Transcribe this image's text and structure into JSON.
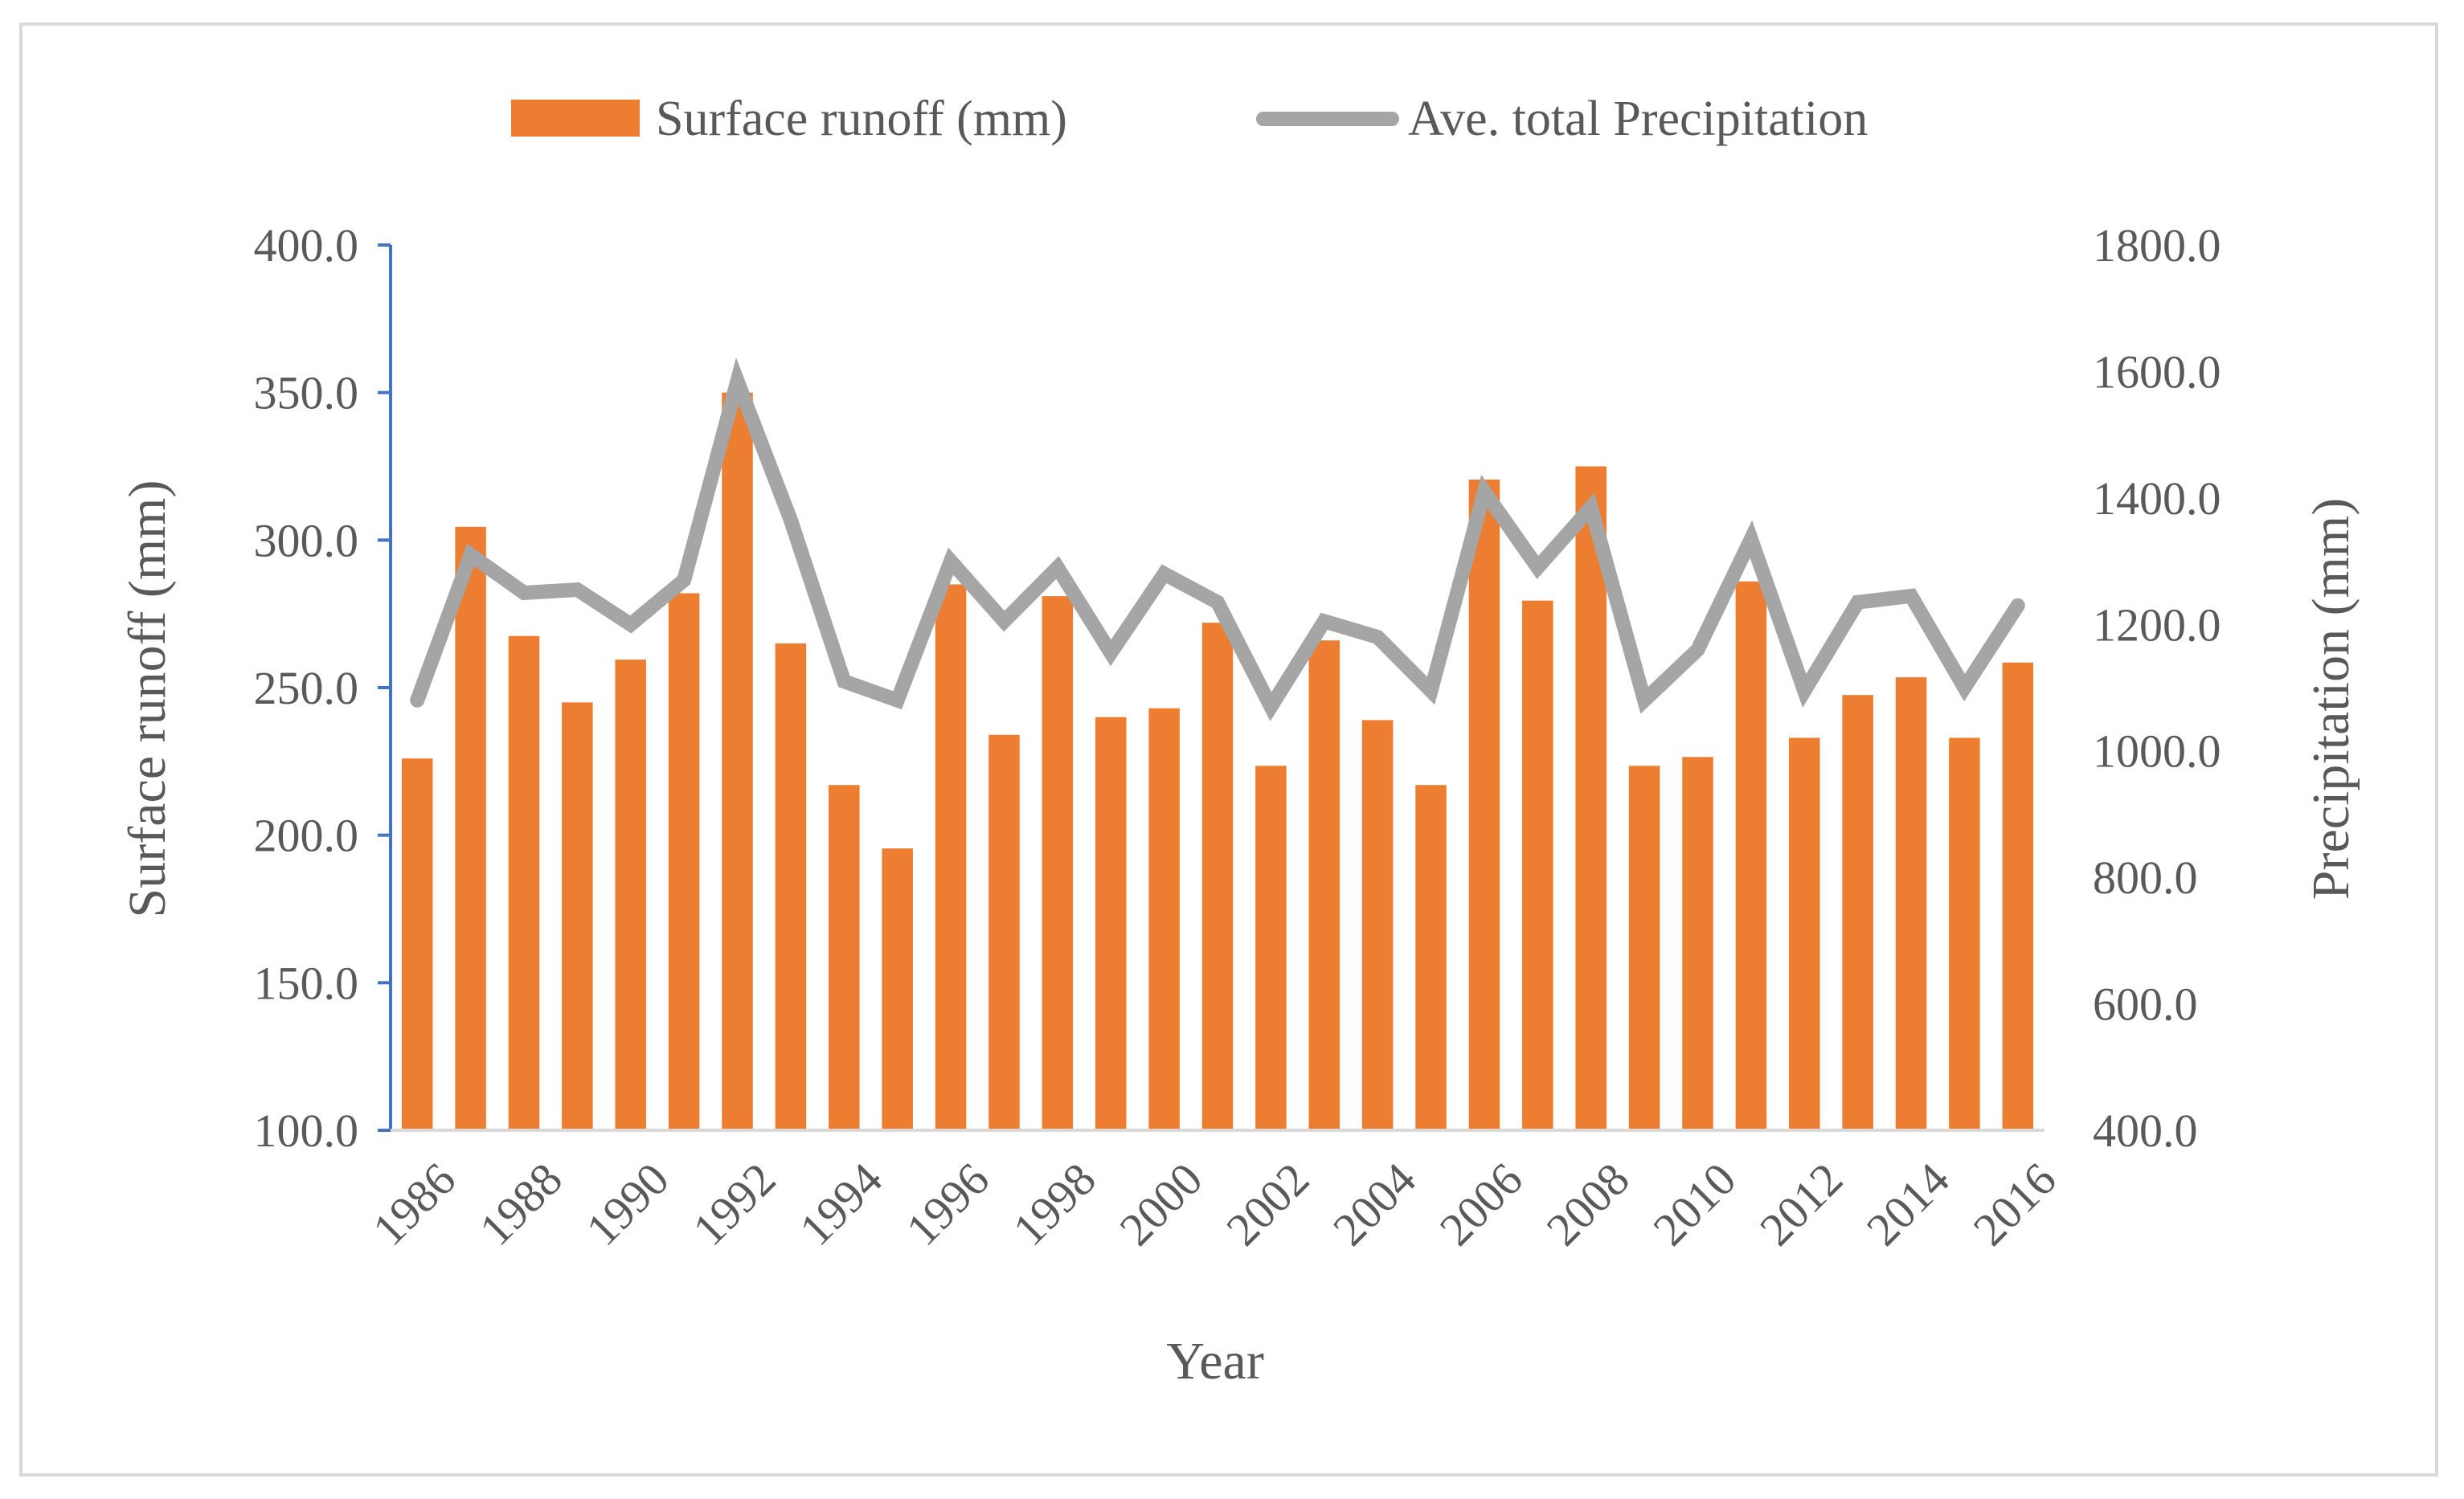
{
  "chart_data": {
    "type": "bar",
    "title": "",
    "xlabel": "Year",
    "ylabel": "Surface runoff (mm)",
    "y2label": "Precipitation (mm)",
    "ylim": [
      100,
      400
    ],
    "y2lim": [
      400,
      1800
    ],
    "yticks": [
      "100.0",
      "150.0",
      "200.0",
      "250.0",
      "300.0",
      "350.0",
      "400.0"
    ],
    "y2ticks": [
      "400.0",
      "600.0",
      "800.0",
      "1000.0",
      "1200.0",
      "1400.0",
      "1600.0",
      "1800.0"
    ],
    "legend_position": "top",
    "grid": false,
    "categories": [
      "1986",
      "1987",
      "1988",
      "1989",
      "1990",
      "1991",
      "1992",
      "1993",
      "1994",
      "1995",
      "1996",
      "1997",
      "1998",
      "1999",
      "2000",
      "2001",
      "2002",
      "2003",
      "2004",
      "2005",
      "2006",
      "2007",
      "2008",
      "2009",
      "2010",
      "2011",
      "2012",
      "2013",
      "2014",
      "2015",
      "2016"
    ],
    "xtick_labels": [
      "1986",
      "1988",
      "1990",
      "1992",
      "1994",
      "1996",
      "1998",
      "2000",
      "2002",
      "2004",
      "2006",
      "2008",
      "2010",
      "2012",
      "2014",
      "2016"
    ],
    "series": [
      {
        "name": "Surface runoff (mm)",
        "type": "bar",
        "axis": "left",
        "color": "#ed7d31",
        "values": [
          226,
          304.5,
          267.5,
          245,
          259.5,
          282,
          350,
          265,
          217,
          195.5,
          285,
          234,
          281,
          240,
          243,
          272,
          223.5,
          266,
          239,
          217,
          320.5,
          279.5,
          325,
          223.5,
          226.5,
          286,
          233,
          247.5,
          253.5,
          233,
          258.5
        ]
      },
      {
        "name": "Ave. total Precipitation",
        "type": "line",
        "axis": "right",
        "color": "#a5a5a5",
        "values": [
          1080,
          1310,
          1250,
          1255,
          1200,
          1270,
          1585,
          1365,
          1110,
          1080,
          1300,
          1205,
          1290,
          1155,
          1280,
          1235,
          1070,
          1205,
          1180,
          1095,
          1410,
          1290,
          1385,
          1080,
          1160,
          1335,
          1095,
          1235,
          1245,
          1100,
          1230
        ]
      }
    ]
  }
}
